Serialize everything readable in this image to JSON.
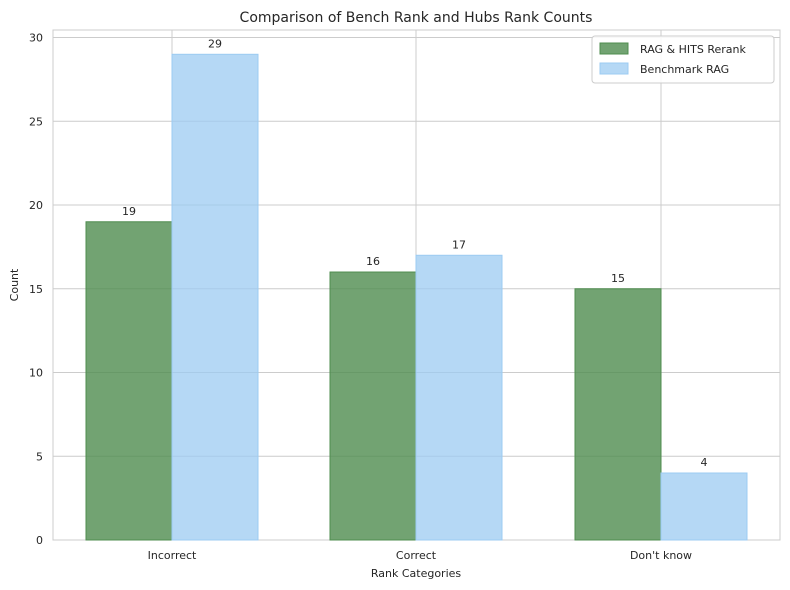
{
  "chart_data": {
    "type": "bar",
    "title": "Comparison of Bench Rank and Hubs Rank Counts",
    "xlabel": "Rank Categories",
    "ylabel": "Count",
    "categories": [
      "Incorrect",
      "Correct",
      "Don't know"
    ],
    "series": [
      {
        "name": "RAG & HITS Rerank",
        "values": [
          19,
          16,
          15
        ],
        "color": "#4f8c4f"
      },
      {
        "name": "Benchmark RAG",
        "values": [
          29,
          17,
          4
        ],
        "color": "#9ccbf2"
      }
    ],
    "ylim": [
      0,
      30.45
    ],
    "yticks": [
      0,
      5,
      10,
      15,
      20,
      25,
      30
    ],
    "grid": true,
    "legend_position": "top-right"
  }
}
